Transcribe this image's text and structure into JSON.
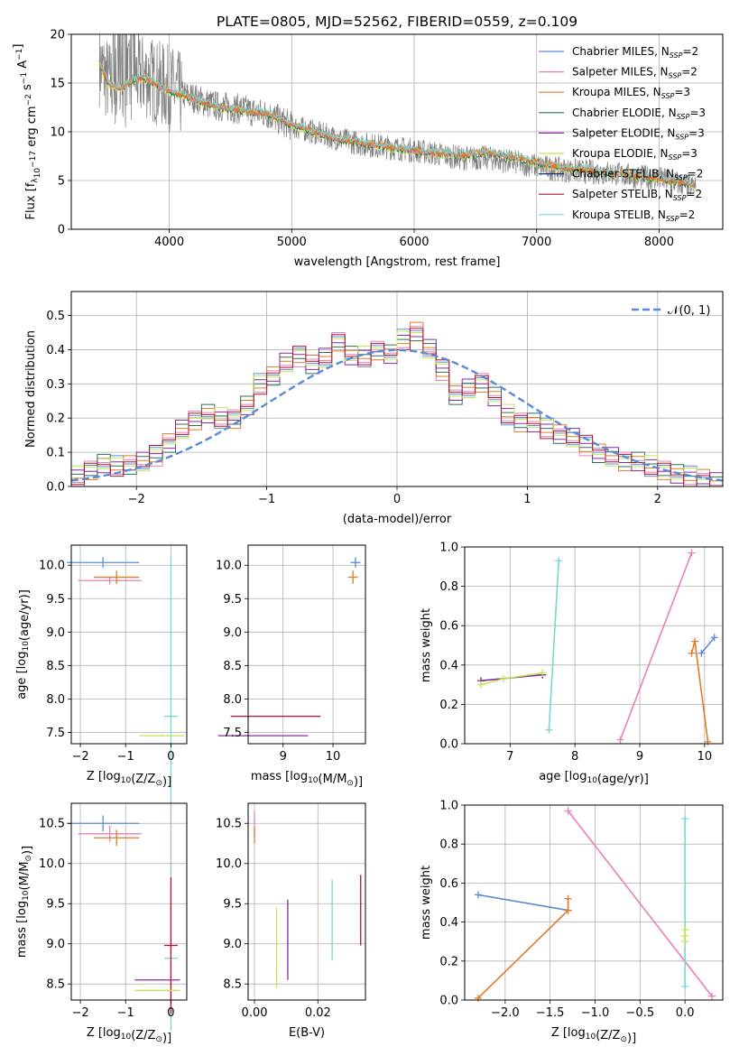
{
  "figure": {
    "title": "PLATE=0805, MJD=52562, FIBERID=0559, z=0.109"
  },
  "colors": {
    "chabrier_miles": "#5b8bd6",
    "salpeter_miles": "#e87fb6",
    "kroupa_miles": "#e07b24",
    "chabrier_elodie": "#2e6e5a",
    "salpeter_elodie": "#8a2a9c",
    "kroupa_elodie": "#c4e45a",
    "chabrier_stelib": "#1c2f6e",
    "salpeter_stelib": "#b3112e",
    "kroupa_stelib": "#7ad4d6",
    "data": "#808080",
    "grid": "#b0b0b0"
  },
  "legend_entries": [
    {
      "base": "Chabrier MILES, N",
      "sub": "SSP",
      "tail": "=2",
      "color": "#5b8bd6"
    },
    {
      "base": "Salpeter MILES, N",
      "sub": "SSP",
      "tail": "=2",
      "color": "#e87fb6"
    },
    {
      "base": "Kroupa MILES, N",
      "sub": "SSP",
      "tail": "=3",
      "color": "#e07b24"
    },
    {
      "base": "Chabrier ELODIE, N",
      "sub": "SSP",
      "tail": "=3",
      "color": "#2e6e5a"
    },
    {
      "base": "Salpeter ELODIE, N",
      "sub": "SSP",
      "tail": "=3",
      "color": "#8a2a9c"
    },
    {
      "base": "Kroupa ELODIE, N",
      "sub": "SSP",
      "tail": "=3",
      "color": "#c4e45a"
    },
    {
      "base": "Chabrier STELIB, N",
      "sub": "SSP",
      "tail": "=2",
      "color": "#1c2f6e"
    },
    {
      "base": "Salpeter STELIB, N",
      "sub": "SSP",
      "tail": "=2",
      "color": "#b3112e"
    },
    {
      "base": "Kroupa STELIB, N",
      "sub": "SSP",
      "tail": "=2",
      "color": "#7ad4d6"
    }
  ],
  "chart_data": [
    {
      "id": "spectrum",
      "type": "line",
      "title": "PLATE=0805, MJD=52562, FIBERID=0559, z=0.109",
      "xlabel": "wavelength [Angstrom, rest frame]",
      "ylabel_parts": [
        "Flux [f",
        "λ",
        "10",
        "−17",
        " erg cm",
        "−2",
        " s",
        "−1",
        " A",
        "−1",
        "]"
      ],
      "xlim": [
        3200,
        8520
      ],
      "ylim": [
        0,
        20
      ],
      "xticks": [
        4000,
        5000,
        6000,
        7000,
        8000
      ],
      "yticks": [
        0,
        5,
        10,
        15,
        20
      ],
      "series": [
        {
          "name": "data",
          "x": [
            3430,
            3500,
            3600,
            3700,
            3800,
            3900,
            4000,
            4100,
            4200,
            4300,
            4400,
            4500,
            4600,
            4700,
            4800,
            4900,
            5000,
            5200,
            5400,
            5600,
            5800,
            6000,
            6200,
            6400,
            6600,
            6800,
            7000,
            7200,
            7400,
            7600,
            7800,
            8000,
            8200,
            8300
          ],
          "y": [
            17,
            15.2,
            14.5,
            15.5,
            15.8,
            15,
            14.5,
            13.8,
            13.5,
            13,
            12.6,
            12.5,
            12.3,
            12.0,
            11.8,
            11.2,
            10.6,
            9.9,
            9.2,
            8.7,
            8.4,
            8.1,
            7.7,
            7.3,
            7.3,
            6.9,
            6.5,
            6.1,
            5.9,
            5.8,
            5.4,
            5.2,
            4.6,
            4.2
          ]
        },
        {
          "name": "model",
          "x": [
            3430,
            3500,
            3600,
            3700,
            3800,
            3900,
            4000,
            4100,
            4200,
            4300,
            4400,
            4500,
            4600,
            4700,
            4800,
            4900,
            5000,
            5200,
            5400,
            5600,
            5800,
            6000,
            6200,
            6400,
            6600,
            6800,
            7000,
            7200,
            7400,
            7600,
            7800,
            8000,
            8200,
            8300
          ],
          "y": [
            17,
            15,
            14.4,
            15.3,
            15.5,
            14.8,
            14.2,
            13.7,
            13.4,
            12.9,
            12.5,
            12.3,
            12.2,
            12.0,
            11.9,
            11.3,
            10.7,
            9.9,
            9.2,
            8.8,
            8.4,
            8.0,
            7.8,
            7.6,
            7.9,
            7.4,
            6.8,
            6.3,
            6.1,
            5.8,
            5.5,
            5.2,
            4.8,
            4.5
          ]
        }
      ]
    },
    {
      "id": "residuals",
      "type": "line",
      "xlabel": "(data-model)/error",
      "ylabel": "Normed distribution",
      "legend": "𝒩(0, 1)",
      "legend_position": "top-right",
      "xlim": [
        -2.5,
        2.5
      ],
      "ylim": [
        0,
        0.57
      ],
      "xticks": [
        -2,
        -1,
        0,
        1,
        2
      ],
      "yticks": [
        0.0,
        0.1,
        0.2,
        0.3,
        0.4,
        0.5
      ],
      "histogram_bin_centers": [
        -2.45,
        -2.35,
        -2.25,
        -2.15,
        -2.05,
        -1.95,
        -1.85,
        -1.75,
        -1.65,
        -1.55,
        -1.45,
        -1.35,
        -1.25,
        -1.15,
        -1.05,
        -0.95,
        -0.85,
        -0.75,
        -0.65,
        -0.55,
        -0.45,
        -0.35,
        -0.25,
        -0.15,
        -0.05,
        0.05,
        0.15,
        0.25,
        0.35,
        0.45,
        0.55,
        0.65,
        0.75,
        0.85,
        0.95,
        1.05,
        1.15,
        1.25,
        1.35,
        1.45,
        1.55,
        1.65,
        1.75,
        1.85,
        1.95,
        2.05,
        2.15,
        2.25,
        2.35,
        2.45
      ],
      "histogram_values": [
        0.03,
        0.05,
        0.07,
        0.06,
        0.06,
        0.07,
        0.09,
        0.13,
        0.17,
        0.19,
        0.21,
        0.2,
        0.2,
        0.24,
        0.3,
        0.32,
        0.36,
        0.38,
        0.36,
        0.38,
        0.42,
        0.38,
        0.38,
        0.4,
        0.39,
        0.43,
        0.45,
        0.4,
        0.34,
        0.27,
        0.29,
        0.3,
        0.26,
        0.21,
        0.19,
        0.19,
        0.17,
        0.15,
        0.14,
        0.12,
        0.1,
        0.09,
        0.07,
        0.07,
        0.06,
        0.05,
        0.04,
        0.03,
        0.02,
        0.01
      ]
    },
    {
      "id": "age_vs_Z",
      "type": "scatter",
      "xlabel_parts": [
        "Z [log",
        "10",
        "(Z/Z",
        "⊙",
        ")]"
      ],
      "ylabel_parts": [
        "age  [log",
        "10",
        "(age/yr)]"
      ],
      "xlim": [
        -2.2,
        0.35
      ],
      "ylim": [
        7.33,
        10.3
      ],
      "xticks": [
        -2,
        -1,
        0
      ],
      "yticks": [
        7.5,
        8.0,
        8.5,
        9.0,
        9.5,
        10.0
      ],
      "points": [
        {
          "x": -1.5,
          "y": 10.04,
          "xerr": 0.8,
          "yerr": 0.08,
          "series": "Chabrier MILES, N_SSP=2"
        },
        {
          "x": -1.35,
          "y": 9.77,
          "xerr": 0.7,
          "yerr": 0.06,
          "series": "Salpeter MILES, N_SSP=2"
        },
        {
          "x": -1.2,
          "y": 9.82,
          "xerr": 0.5,
          "yerr": 0.1,
          "series": "Kroupa MILES, N_SSP=3"
        },
        {
          "x": 0.0,
          "y": 7.74,
          "xerr": 0.15,
          "yerr": 2.4,
          "series": "Kroupa STELIB, N_SSP=2"
        },
        {
          "x": -0.2,
          "y": 7.45,
          "xerr": 0.5,
          "yerr": 0.02,
          "series": "Kroupa ELODIE, N_SSP=3"
        }
      ]
    },
    {
      "id": "age_vs_mass",
      "type": "scatter",
      "xlabel_parts": [
        "mass [log",
        "10",
        "(M/M",
        "⊙",
        ")]"
      ],
      "xlim": [
        8.3,
        10.65
      ],
      "ylim": [
        7.33,
        10.3
      ],
      "xticks": [
        9,
        10
      ],
      "yticks": [
        7.5,
        8.0,
        8.5,
        9.0,
        9.5,
        10.0
      ],
      "points": [
        {
          "x": 10.45,
          "y": 10.04,
          "xerr": 0.1,
          "yerr": 0.08,
          "series": "Chabrier MILES, N_SSP=2"
        },
        {
          "x": 10.4,
          "y": 9.82,
          "xerr": 0.1,
          "yerr": 0.1,
          "series": "Kroupa MILES, N_SSP=3"
        },
        {
          "x": 8.85,
          "y": 7.74,
          "xerr": 0.9,
          "yerr": 0.0,
          "series": "Salpeter STELIB, N_SSP=2"
        },
        {
          "x": 8.6,
          "y": 7.45,
          "xerr": 0.9,
          "yerr": 0.0,
          "series": "Salpeter ELODIE, N_SSP=3"
        }
      ]
    },
    {
      "id": "weight_vs_age",
      "type": "line",
      "xlabel_parts": [
        "age  [log",
        "10",
        "(age/yr)]"
      ],
      "ylabel": "mass weight",
      "xlim": [
        6.3,
        10.28
      ],
      "ylim": [
        0,
        1.0
      ],
      "xticks": [
        7,
        8,
        9,
        10
      ],
      "yticks": [
        0.0,
        0.2,
        0.4,
        0.6,
        0.8,
        1.0
      ],
      "series": [
        {
          "name": "Chabrier MILES, N_SSP=2",
          "x": [
            9.95,
            10.15
          ],
          "y": [
            0.46,
            0.54
          ]
        },
        {
          "name": "Salpeter MILES, N_SSP=2",
          "x": [
            8.7,
            9.8
          ],
          "y": [
            0.02,
            0.97
          ]
        },
        {
          "name": "Kroupa MILES, N_SSP=3",
          "x": [
            9.8,
            9.85,
            10.05
          ],
          "y": [
            0.46,
            0.52,
            0.01
          ]
        },
        {
          "name": "Salpeter ELODIE, N_SSP=3",
          "x": [
            6.55,
            7.5
          ],
          "y": [
            0.32,
            0.35
          ]
        },
        {
          "name": "Kroupa ELODIE, N_SSP=3",
          "x": [
            6.55,
            6.9,
            7.5
          ],
          "y": [
            0.3,
            0.33,
            0.36
          ]
        },
        {
          "name": "Kroupa STELIB, N_SSP=2",
          "x": [
            7.6,
            7.75
          ],
          "y": [
            0.07,
            0.93
          ]
        }
      ]
    },
    {
      "id": "mass_vs_Z",
      "type": "scatter",
      "xlabel_parts": [
        "Z [log",
        "10",
        "(Z/Z",
        "⊙",
        ")]"
      ],
      "ylabel_parts": [
        "mass [log",
        "10",
        "(M/M",
        "⊙",
        ")]"
      ],
      "xlim": [
        -2.2,
        0.35
      ],
      "ylim": [
        8.3,
        10.75
      ],
      "xticks": [
        -2,
        -1,
        0
      ],
      "yticks": [
        8.5,
        9.0,
        9.5,
        10.0,
        10.5
      ],
      "points": [
        {
          "x": -1.5,
          "y": 10.5,
          "xerr": 0.8,
          "yerr": 0.1,
          "series": "Chabrier MILES, N_SSP=2"
        },
        {
          "x": -1.35,
          "y": 10.37,
          "xerr": 0.7,
          "yerr": 0.1,
          "series": "Salpeter MILES, N_SSP=2"
        },
        {
          "x": -1.2,
          "y": 10.32,
          "xerr": 0.5,
          "yerr": 0.1,
          "series": "Kroupa MILES, N_SSP=3"
        },
        {
          "x": 0.0,
          "y": 8.82,
          "xerr": 0.15,
          "yerr": 0.9,
          "series": "Kroupa STELIB, N_SSP=2"
        },
        {
          "x": 0.0,
          "y": 8.98,
          "xerr": 0.15,
          "yerr": 0.85,
          "series": "Salpeter STELIB, N_SSP=2"
        },
        {
          "x": -0.3,
          "y": 8.55,
          "xerr": 0.5,
          "yerr": 0.0,
          "series": "Salpeter ELODIE, N_SSP=3"
        },
        {
          "x": -0.3,
          "y": 8.42,
          "xerr": 0.5,
          "yerr": 0.0,
          "series": "Kroupa ELODIE, N_SSP=3"
        }
      ]
    },
    {
      "id": "mass_vs_EBV",
      "type": "scatter",
      "xlabel": "E(B-V)",
      "xlim": [
        -0.002,
        0.035
      ],
      "ylim": [
        8.3,
        10.75
      ],
      "xticks": [
        0.0,
        0.02
      ],
      "xticklabels": [
        "0.00",
        "0.02"
      ],
      "yticks": [
        8.5,
        9.0,
        9.5,
        10.0,
        10.5
      ],
      "points": [
        {
          "x": 0.0,
          "y": 10.5,
          "yerr": 0.15,
          "series": "Salpeter MILES, N_SSP=2"
        },
        {
          "x": 0.0,
          "y": 10.35,
          "yerr": 0.1,
          "series": "Kroupa MILES, N_SSP=3"
        },
        {
          "x": 0.007,
          "y": 8.95,
          "yerr": 0.5,
          "series": "Kroupa ELODIE, N_SSP=3"
        },
        {
          "x": 0.0105,
          "y": 9.05,
          "yerr": 0.5,
          "series": "Salpeter ELODIE, N_SSP=3"
        },
        {
          "x": 0.0245,
          "y": 9.3,
          "yerr": 0.5,
          "series": "Kroupa STELIB, N_SSP=2"
        },
        {
          "x": 0.0335,
          "y": 9.42,
          "yerr": 0.44,
          "series": "Salpeter STELIB, N_SSP=2"
        }
      ]
    },
    {
      "id": "weight_vs_Z",
      "type": "line",
      "xlabel_parts": [
        "Z [log",
        "10",
        "(Z/Z",
        "⊙",
        ")]"
      ],
      "ylabel": "mass weight",
      "xlim": [
        -2.45,
        0.42
      ],
      "ylim": [
        0,
        1.0
      ],
      "xticks": [
        -2.0,
        -1.5,
        -1.0,
        -0.5,
        0.0
      ],
      "xticklabels": [
        "−2.0",
        "−1.5",
        "−1.0",
        "−0.5",
        "0.0"
      ],
      "yticks": [
        0.0,
        0.2,
        0.4,
        0.6,
        0.8,
        1.0
      ],
      "series": [
        {
          "name": "Chabrier MILES, N_SSP=2",
          "x": [
            -2.3,
            -1.3
          ],
          "y": [
            0.54,
            0.46
          ]
        },
        {
          "name": "Salpeter MILES, N_SSP=2",
          "x": [
            -1.3,
            0.3
          ],
          "y": [
            0.97,
            0.02
          ]
        },
        {
          "name": "Kroupa MILES, N_SSP=3",
          "x": [
            -2.3,
            -1.3,
            -1.3
          ],
          "y": [
            0.01,
            0.46,
            0.52
          ]
        },
        {
          "name": "Kroupa STELIB, N_SSP=2",
          "x": [
            0.0,
            0.0
          ],
          "y": [
            0.07,
            0.93
          ]
        },
        {
          "name": "Kroupa ELODIE, N_SSP=3",
          "x": [
            0.0,
            0.0,
            0.0
          ],
          "y": [
            0.3,
            0.33,
            0.36
          ]
        }
      ]
    }
  ]
}
